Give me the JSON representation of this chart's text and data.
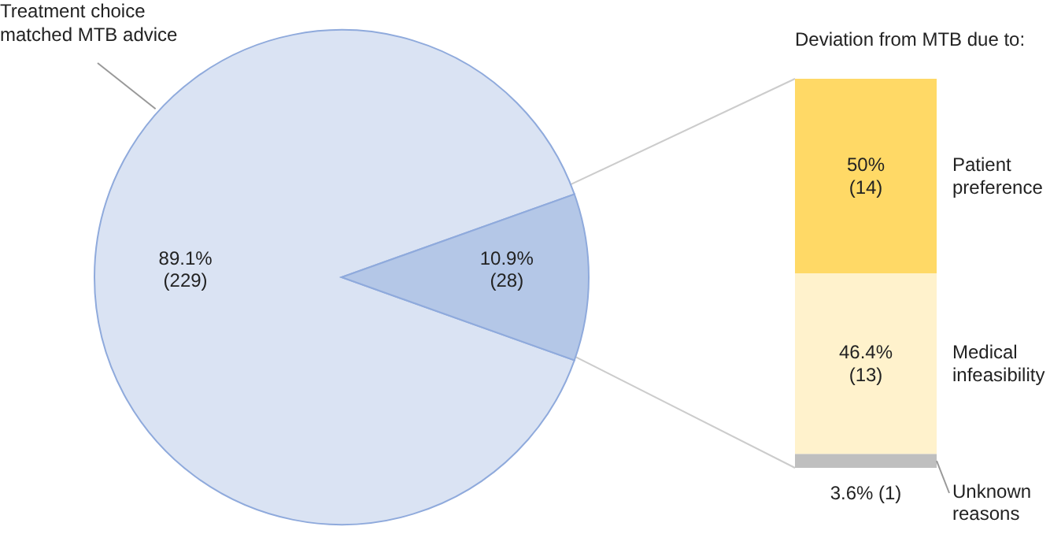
{
  "chart_data": [
    {
      "type": "pie",
      "categories": [
        "Treatment choice matched MTB advice",
        null
      ],
      "values": [
        229,
        28
      ],
      "colors": [
        "#dae3f3",
        "#b4c7e7"
      ],
      "value_labels": [
        "89.1%\n(229)",
        "10.9%\n(28)"
      ]
    },
    {
      "type": "bar",
      "stacked": true,
      "title": "Deviation from MTB due to:",
      "categories": [
        null
      ],
      "series": [
        {
          "name": "Unknown reasons",
          "color": "#bfbfbf",
          "values": [
            1
          ],
          "value_labels": [
            "3.6% (1)"
          ]
        },
        {
          "name": "Medical infeasibility",
          "color": "#fff2cc",
          "values": [
            13
          ],
          "value_labels": [
            "46.4%\n(13)"
          ]
        },
        {
          "name": "Patient preference",
          "color": "#ffd966",
          "values": [
            14
          ],
          "value_labels": [
            "50%\n(14)"
          ]
        }
      ]
    }
  ]
}
